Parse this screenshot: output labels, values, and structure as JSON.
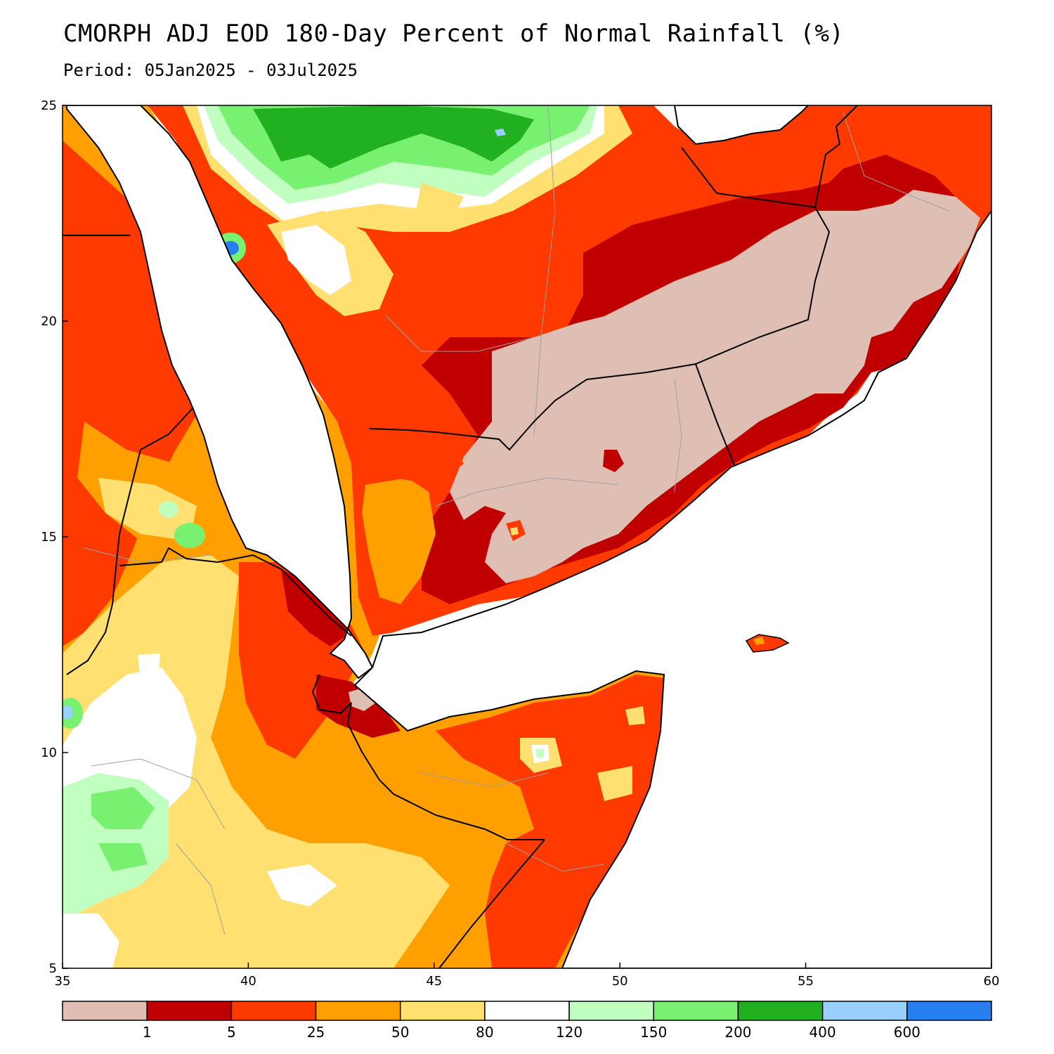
{
  "title": "CMORPH ADJ EOD 180-Day Percent of Normal Rainfall (%)",
  "subtitle": "Period: 05Jan2025 - 03Jul2025",
  "map": {
    "lon_range": [
      35,
      60
    ],
    "lat_range": [
      5,
      25
    ],
    "x_ticks": [
      "35",
      "40",
      "45",
      "50",
      "55",
      "60"
    ],
    "y_ticks": [
      "25",
      "20",
      "15",
      "10",
      "5"
    ]
  },
  "legend": {
    "colors": [
      "#dfbfb3",
      "#c00000",
      "#ff3a00",
      "#ffa000",
      "#ffe070",
      "#ffffff",
      "#c0ffc0",
      "#78f070",
      "#20b020",
      "#98d0ff",
      "#2880f0"
    ],
    "labels": [
      "1",
      "5",
      "25",
      "50",
      "80",
      "120",
      "150",
      "200",
      "400",
      "600"
    ]
  },
  "colors": {
    "sea": "#ffffff",
    "country_border": "#000000",
    "admin_border": "#a0a0a0"
  }
}
